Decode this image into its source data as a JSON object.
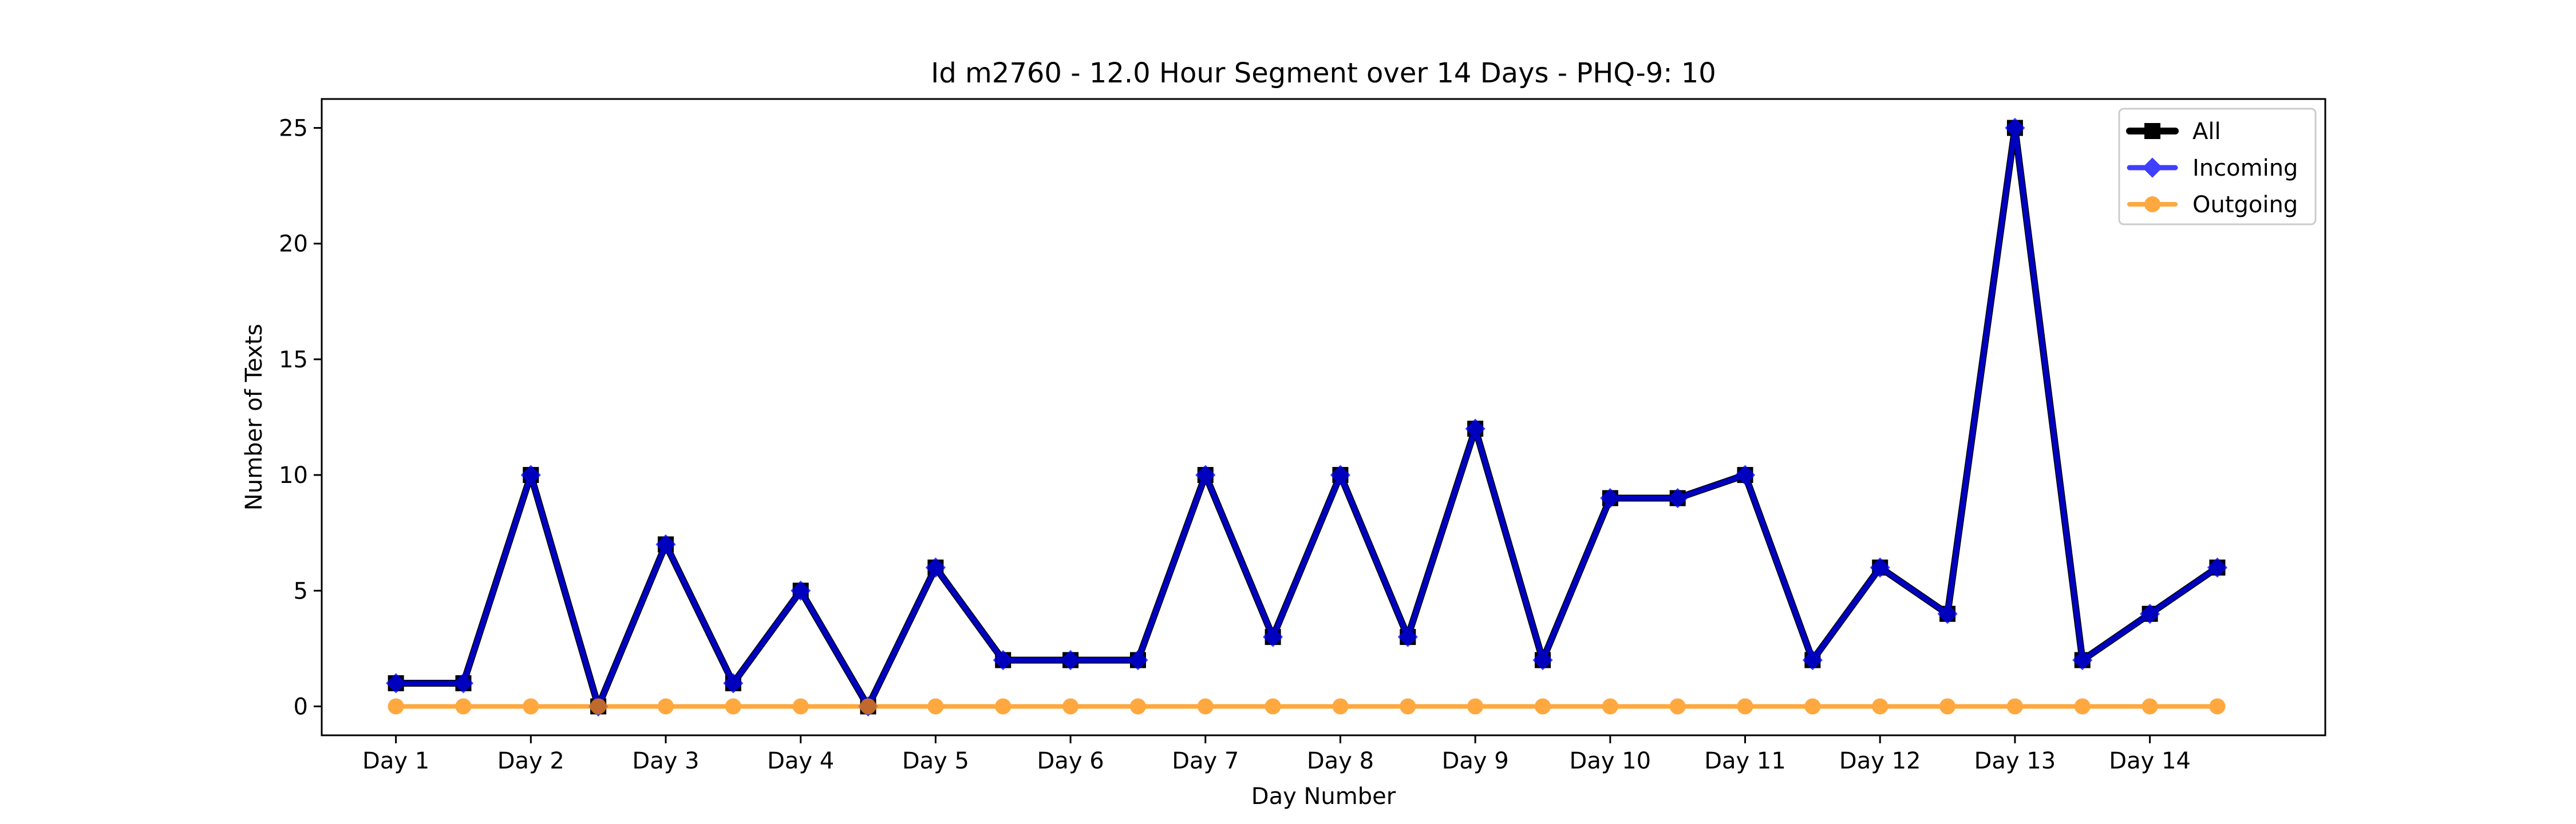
{
  "chart_data": {
    "type": "line",
    "title": "Id m2760 - 12.0 Hour Segment over 14 Days - PHQ-9: 10",
    "xlabel": "Day Number",
    "ylabel": "Number of Texts",
    "x": [
      1,
      1.5,
      2,
      2.5,
      3,
      3.5,
      4,
      4.5,
      5,
      5.5,
      6,
      6.5,
      7,
      7.5,
      8,
      8.5,
      9,
      9.5,
      10,
      10.5,
      11,
      11.5,
      12,
      12.5,
      13,
      13.5,
      14,
      14.5
    ],
    "xticks": [
      1,
      2,
      3,
      4,
      5,
      6,
      7,
      8,
      9,
      10,
      11,
      12,
      13,
      14
    ],
    "xtick_labels": [
      "Day 1",
      "Day 2",
      "Day 3",
      "Day 4",
      "Day 5",
      "Day 6",
      "Day 7",
      "Day 8",
      "Day 9",
      "Day 10",
      "Day 11",
      "Day 12",
      "Day 13",
      "Day 14"
    ],
    "yticks": [
      0,
      5,
      10,
      15,
      20,
      25
    ],
    "ytick_labels": [
      "0",
      "5",
      "10",
      "15",
      "20",
      "25"
    ],
    "xlim": [
      0.45,
      15.3
    ],
    "ylim": [
      -1.25,
      26.25
    ],
    "grid": false,
    "legend_position": "top-right",
    "series": [
      {
        "name": "All",
        "color": "#000000",
        "marker": "square",
        "values": [
          1,
          1,
          10,
          0,
          7,
          1,
          5,
          0,
          6,
          2,
          2,
          2,
          10,
          3,
          10,
          3,
          12,
          2,
          9,
          9,
          10,
          2,
          6,
          4,
          25,
          2,
          4,
          6
        ]
      },
      {
        "name": "Incoming",
        "color": "#0000ff",
        "marker": "diamond",
        "values": [
          1,
          1,
          10,
          0,
          7,
          1,
          5,
          0,
          6,
          2,
          2,
          2,
          10,
          3,
          10,
          3,
          12,
          2,
          9,
          9,
          10,
          2,
          6,
          4,
          25,
          2,
          4,
          6
        ]
      },
      {
        "name": "Outgoing",
        "color": "#ff8c00",
        "marker": "circle",
        "values": [
          0,
          0,
          0,
          0,
          0,
          0,
          0,
          0,
          0,
          0,
          0,
          0,
          0,
          0,
          0,
          0,
          0,
          0,
          0,
          0,
          0,
          0,
          0,
          0,
          0,
          0,
          0,
          0
        ]
      }
    ]
  }
}
